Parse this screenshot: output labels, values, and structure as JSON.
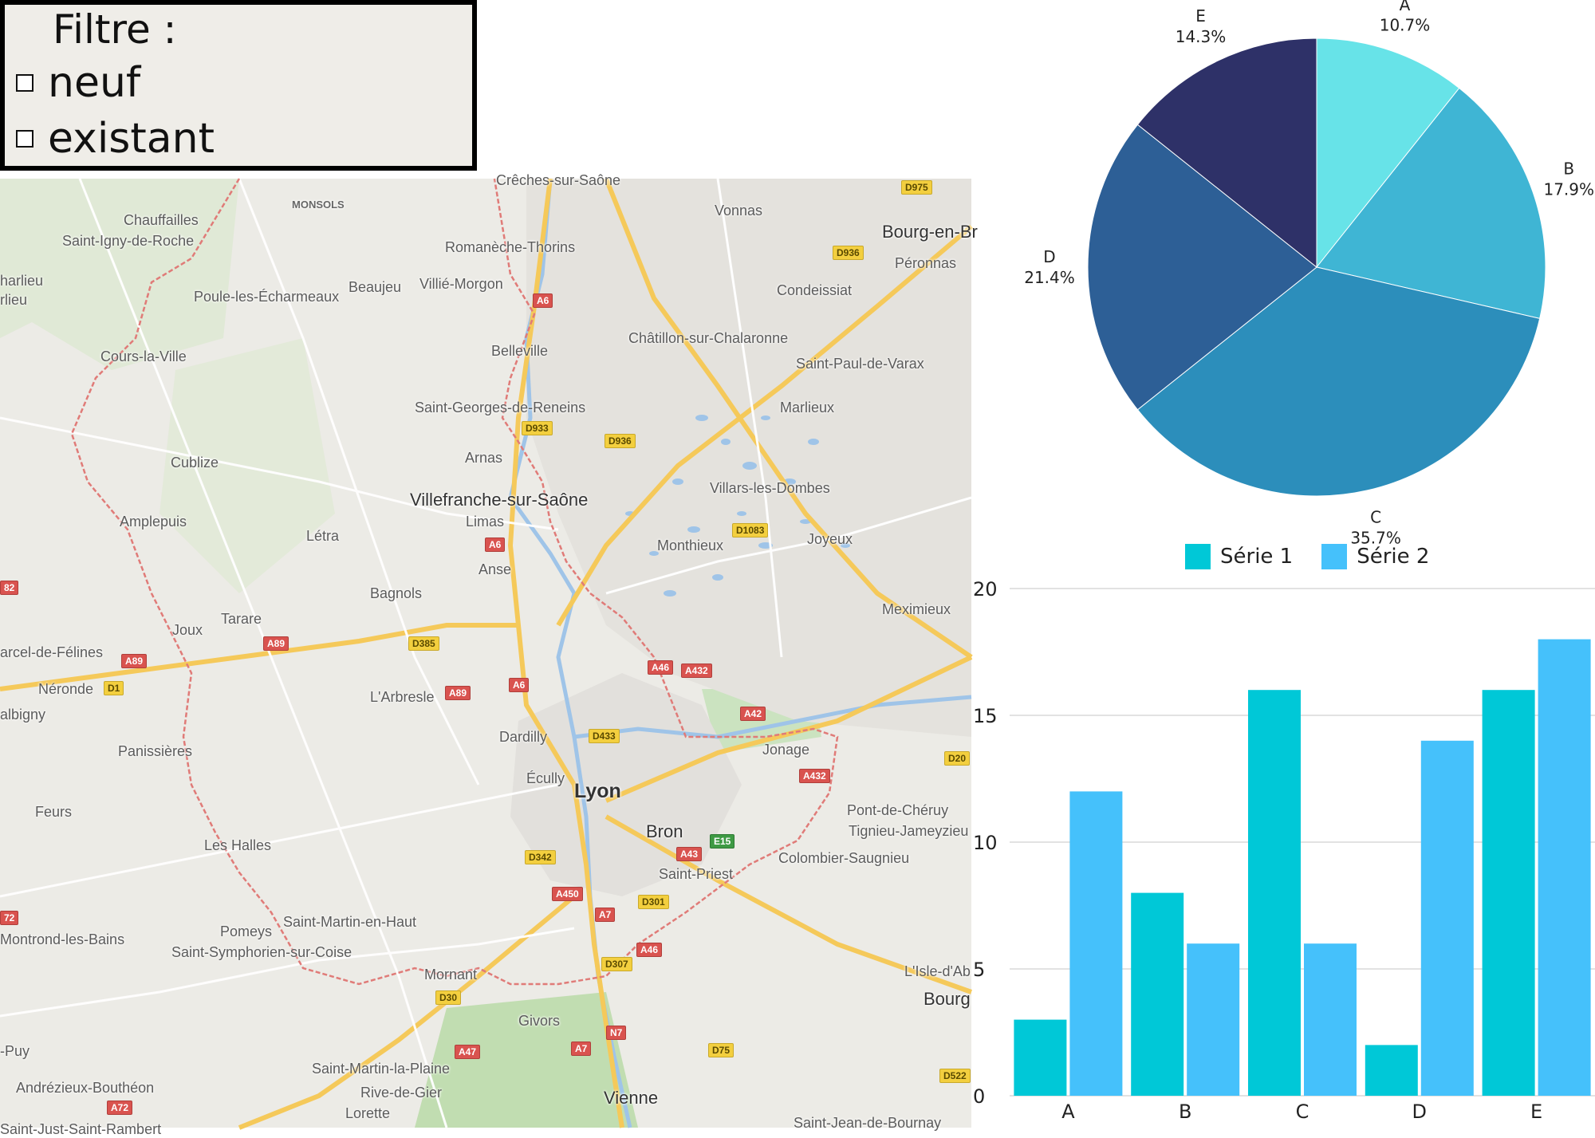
{
  "filter": {
    "title": "Filtre :",
    "options": [
      {
        "label": "neuf",
        "checked": false
      },
      {
        "label": "existant",
        "checked": false
      }
    ]
  },
  "map": {
    "towns": [
      {
        "key": "chauffailles",
        "label": "Chauffailles"
      },
      {
        "key": "saint_igny",
        "label": "Saint-Igny-de-Roche"
      },
      {
        "key": "monsols",
        "label": "MONSOLS"
      },
      {
        "key": "creches",
        "label": "Crêches-sur-Saône"
      },
      {
        "key": "vonnas",
        "label": "Vonnas"
      },
      {
        "key": "bourg",
        "label": "Bourg-en-Br"
      },
      {
        "key": "peronnas",
        "label": "Péronnas"
      },
      {
        "key": "romaneche",
        "label": "Romanèche-Thorins"
      },
      {
        "key": "charlieu",
        "label": "harlieu"
      },
      {
        "key": "charlieu2",
        "label": "rlieu"
      },
      {
        "key": "beaujeu",
        "label": "Beaujeu"
      },
      {
        "key": "villie",
        "label": "Villié-Morgon"
      },
      {
        "key": "poule",
        "label": "Poule-les-Écharmeaux"
      },
      {
        "key": "condeissiat",
        "label": "Condeissiat"
      },
      {
        "key": "chatillon",
        "label": "Châtillon-sur-Chalaronne"
      },
      {
        "key": "cours",
        "label": "Cours-la-Ville"
      },
      {
        "key": "belleville",
        "label": "Belleville"
      },
      {
        "key": "saint_paul",
        "label": "Saint-Paul-de-Varax"
      },
      {
        "key": "saint_georges",
        "label": "Saint-Georges-de-Reneins"
      },
      {
        "key": "marlieux",
        "label": "Marlieux"
      },
      {
        "key": "arnas",
        "label": "Arnas"
      },
      {
        "key": "cublize",
        "label": "Cublize"
      },
      {
        "key": "villars",
        "label": "Villars-les-Dombes"
      },
      {
        "key": "villefranche",
        "label": "Villefranche-sur-Saône"
      },
      {
        "key": "amplepuis",
        "label": "Amplepuis"
      },
      {
        "key": "limas",
        "label": "Limas"
      },
      {
        "key": "letra",
        "label": "Létra"
      },
      {
        "key": "monthieux",
        "label": "Monthieux"
      },
      {
        "key": "joyeux",
        "label": "Joyeux"
      },
      {
        "key": "anse",
        "label": "Anse"
      },
      {
        "key": "bagnols",
        "label": "Bagnols"
      },
      {
        "key": "meximieux",
        "label": "Meximieux"
      },
      {
        "key": "tarare",
        "label": "Tarare"
      },
      {
        "key": "joux",
        "label": "Joux"
      },
      {
        "key": "marcel",
        "label": "arcel-de-Félines"
      },
      {
        "key": "neronde",
        "label": "Néronde"
      },
      {
        "key": "larbresle",
        "label": "L'Arbresle"
      },
      {
        "key": "albigny",
        "label": "albigny"
      },
      {
        "key": "dardilly",
        "label": "Dardilly"
      },
      {
        "key": "jonage",
        "label": "Jonage"
      },
      {
        "key": "panissieres",
        "label": "Panissières"
      },
      {
        "key": "ecully",
        "label": "Écully"
      },
      {
        "key": "lyon",
        "label": "Lyon"
      },
      {
        "key": "feurs",
        "label": "Feurs"
      },
      {
        "key": "pont_cheruy",
        "label": "Pont-de-Chéruy"
      },
      {
        "key": "bron",
        "label": "Bron"
      },
      {
        "key": "tignieu",
        "label": "Tignieu-Jameyzieu"
      },
      {
        "key": "les_halles",
        "label": "Les Halles"
      },
      {
        "key": "colombier",
        "label": "Colombier-Saugnieu"
      },
      {
        "key": "saint_priest",
        "label": "Saint-Priest"
      },
      {
        "key": "saint_martin_haut",
        "label": "Saint-Martin-en-Haut"
      },
      {
        "key": "pomeys",
        "label": "Pomeys"
      },
      {
        "key": "montrond",
        "label": "Montrond-les-Bains"
      },
      {
        "key": "saint_symphorien",
        "label": "Saint-Symphorien-sur-Coise"
      },
      {
        "key": "mornant",
        "label": "Mornant"
      },
      {
        "key": "lisle",
        "label": "L'Isle-d'Ab"
      },
      {
        "key": "bourg2",
        "label": "Bourg"
      },
      {
        "key": "givors",
        "label": "Givors"
      },
      {
        "key": "puy",
        "label": "-Puy"
      },
      {
        "key": "saint_martin_plaine",
        "label": "Saint-Martin-la-Plaine"
      },
      {
        "key": "andrezieux",
        "label": "Andrézieux-Bouthéon"
      },
      {
        "key": "rive",
        "label": "Rive-de-Gier"
      },
      {
        "key": "vienne",
        "label": "Vienne"
      },
      {
        "key": "lorette",
        "label": "Lorette"
      },
      {
        "key": "saint_jean",
        "label": "Saint-Jean-de-Bournay"
      },
      {
        "key": "saint_just",
        "label": "Saint-Just-Saint-Rambert"
      }
    ],
    "roads": [
      {
        "key": "d975",
        "label": "D975"
      },
      {
        "key": "d936a",
        "label": "D936"
      },
      {
        "key": "a6a",
        "label": "A6"
      },
      {
        "key": "d933",
        "label": "D933"
      },
      {
        "key": "d936b",
        "label": "D936"
      },
      {
        "key": "a6b",
        "label": "A6"
      },
      {
        "key": "d1083",
        "label": "D1083"
      },
      {
        "key": "a82",
        "label": "82"
      },
      {
        "key": "a89a",
        "label": "A89"
      },
      {
        "key": "d385",
        "label": "D385"
      },
      {
        "key": "a89b",
        "label": "A89"
      },
      {
        "key": "d1",
        "label": "D1"
      },
      {
        "key": "a89c",
        "label": "A89"
      },
      {
        "key": "a6c",
        "label": "A6"
      },
      {
        "key": "a46a",
        "label": "A46"
      },
      {
        "key": "a432a",
        "label": "A432"
      },
      {
        "key": "a42",
        "label": "A42"
      },
      {
        "key": "d433",
        "label": "D433"
      },
      {
        "key": "d20",
        "label": "D20"
      },
      {
        "key": "a432b",
        "label": "A432"
      },
      {
        "key": "e15",
        "label": "E15"
      },
      {
        "key": "a43",
        "label": "A43"
      },
      {
        "key": "d342",
        "label": "D342"
      },
      {
        "key": "a450",
        "label": "A450"
      },
      {
        "key": "d301",
        "label": "D301"
      },
      {
        "key": "a7a",
        "label": "A7"
      },
      {
        "key": "a72a",
        "label": "72"
      },
      {
        "key": "a46b",
        "label": "A46"
      },
      {
        "key": "d307",
        "label": "D307"
      },
      {
        "key": "d30",
        "label": "D30"
      },
      {
        "key": "n7",
        "label": "N7"
      },
      {
        "key": "a47",
        "label": "A47"
      },
      {
        "key": "a7b",
        "label": "A7"
      },
      {
        "key": "d75",
        "label": "D75"
      },
      {
        "key": "d522",
        "label": "D522"
      },
      {
        "key": "a72b",
        "label": "A72"
      }
    ]
  },
  "colors": {
    "pie_a": "#67e3e8",
    "pie_b": "#3fb5d4",
    "pie_c": "#2c8ebb",
    "pie_d": "#2d5f96",
    "pie_e": "#2e3168",
    "series1": "#00c8d7",
    "series2": "#45c1fb",
    "lyon_border": "#e07b78",
    "map_bg": "#ecebe6"
  },
  "chart_data": [
    {
      "type": "pie",
      "categories": [
        "A",
        "B",
        "C",
        "D",
        "E"
      ],
      "values": [
        10.7,
        17.9,
        35.7,
        21.4,
        14.3
      ],
      "labels": [
        "10.7%",
        "17.9%",
        "35.7%",
        "21.4%",
        "14.3%"
      ]
    },
    {
      "type": "bar",
      "categories": [
        "A",
        "B",
        "C",
        "D",
        "E"
      ],
      "series": [
        {
          "name": "Série 1",
          "values": [
            3,
            8,
            16,
            2,
            16
          ]
        },
        {
          "name": "Série 2",
          "values": [
            12,
            6,
            6,
            14,
            18
          ]
        }
      ],
      "ylim": [
        0,
        20
      ],
      "yticks": [
        "0",
        "5",
        "10",
        "15",
        "20"
      ],
      "grid": true,
      "legend": "top"
    }
  ]
}
